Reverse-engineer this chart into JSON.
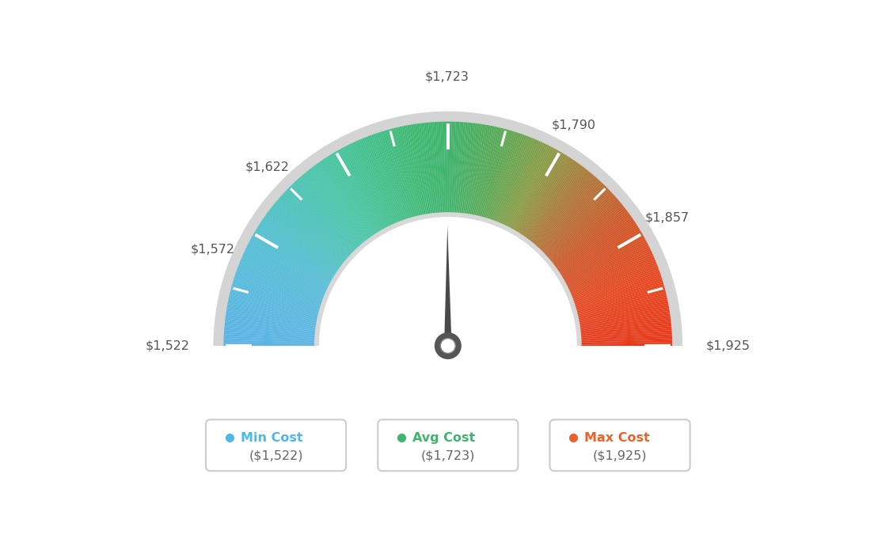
{
  "min_val": 1522,
  "max_val": 1925,
  "avg_val": 1723,
  "label_positions": [
    {
      "val": 1522,
      "text": "$1,522"
    },
    {
      "val": 1572,
      "text": "$1,572"
    },
    {
      "val": 1622,
      "text": "$1,622"
    },
    {
      "val": 1723,
      "text": "$1,723"
    },
    {
      "val": 1790,
      "text": "$1,790"
    },
    {
      "val": 1857,
      "text": "$1,857"
    },
    {
      "val": 1925,
      "text": "$1,925"
    }
  ],
  "color_stops": [
    [
      0.0,
      "#5ab4e8"
    ],
    [
      0.15,
      "#55c0d8"
    ],
    [
      0.3,
      "#48c8a8"
    ],
    [
      0.45,
      "#3dba72"
    ],
    [
      0.5,
      "#3db56c"
    ],
    [
      0.58,
      "#5aaa55"
    ],
    [
      0.65,
      "#8a9e45"
    ],
    [
      0.72,
      "#b07838"
    ],
    [
      0.8,
      "#d05828"
    ],
    [
      0.9,
      "#e84820"
    ],
    [
      1.0,
      "#e83818"
    ]
  ],
  "legend_items": [
    {
      "label": "Min Cost",
      "value": "($1,522)",
      "color": "#4db8e8"
    },
    {
      "label": "Avg Cost",
      "value": "($1,723)",
      "color": "#3db56c"
    },
    {
      "label": "Max Cost",
      "value": "($1,925)",
      "color": "#e8622a"
    }
  ],
  "needle_color": "#4a4a4a",
  "hub_outer_color": "#555555",
  "hub_inner_color": "#ffffff",
  "gauge_border_color": "#cccccc",
  "inner_arc_color": "#e8e8e8",
  "background_color": "#ffffff",
  "tick_color": "#ffffff",
  "label_color": "#555555"
}
